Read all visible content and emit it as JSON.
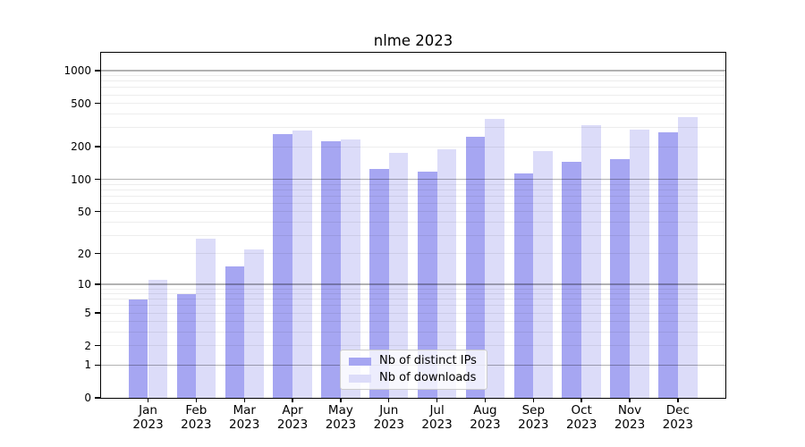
{
  "title": "nlme 2023",
  "chart_data": {
    "type": "bar",
    "title": "nlme 2023",
    "categories": [
      "Jan",
      "Feb",
      "Mar",
      "Apr",
      "May",
      "Jun",
      "Jul",
      "Aug",
      "Sep",
      "Oct",
      "Nov",
      "Dec"
    ],
    "category_year": "2023",
    "series": [
      {
        "name": "Nb of distinct IPs",
        "color": "#a6a6f2",
        "values": [
          7,
          8,
          15,
          263,
          226,
          124,
          118,
          247,
          113,
          146,
          154,
          271
        ]
      },
      {
        "name": "Nb of downloads",
        "color": "#dcdcf9",
        "values": [
          11,
          28,
          22,
          282,
          232,
          177,
          189,
          359,
          182,
          316,
          286,
          377
        ]
      }
    ],
    "yscale": "log1p",
    "ylim": [
      0,
      1460
    ],
    "yticks": [
      0,
      1,
      2,
      5,
      10,
      20,
      50,
      100,
      200,
      500,
      1000
    ],
    "major_gridlines": [
      1,
      10,
      100,
      1000
    ],
    "minor_gridlines": [
      2,
      3,
      4,
      5,
      6,
      7,
      8,
      9,
      20,
      30,
      40,
      50,
      60,
      70,
      80,
      90,
      200,
      300,
      400,
      500,
      600,
      700,
      800,
      900
    ],
    "grid": true,
    "legend_position": "lower center",
    "xlabel": "",
    "ylabel": ""
  }
}
